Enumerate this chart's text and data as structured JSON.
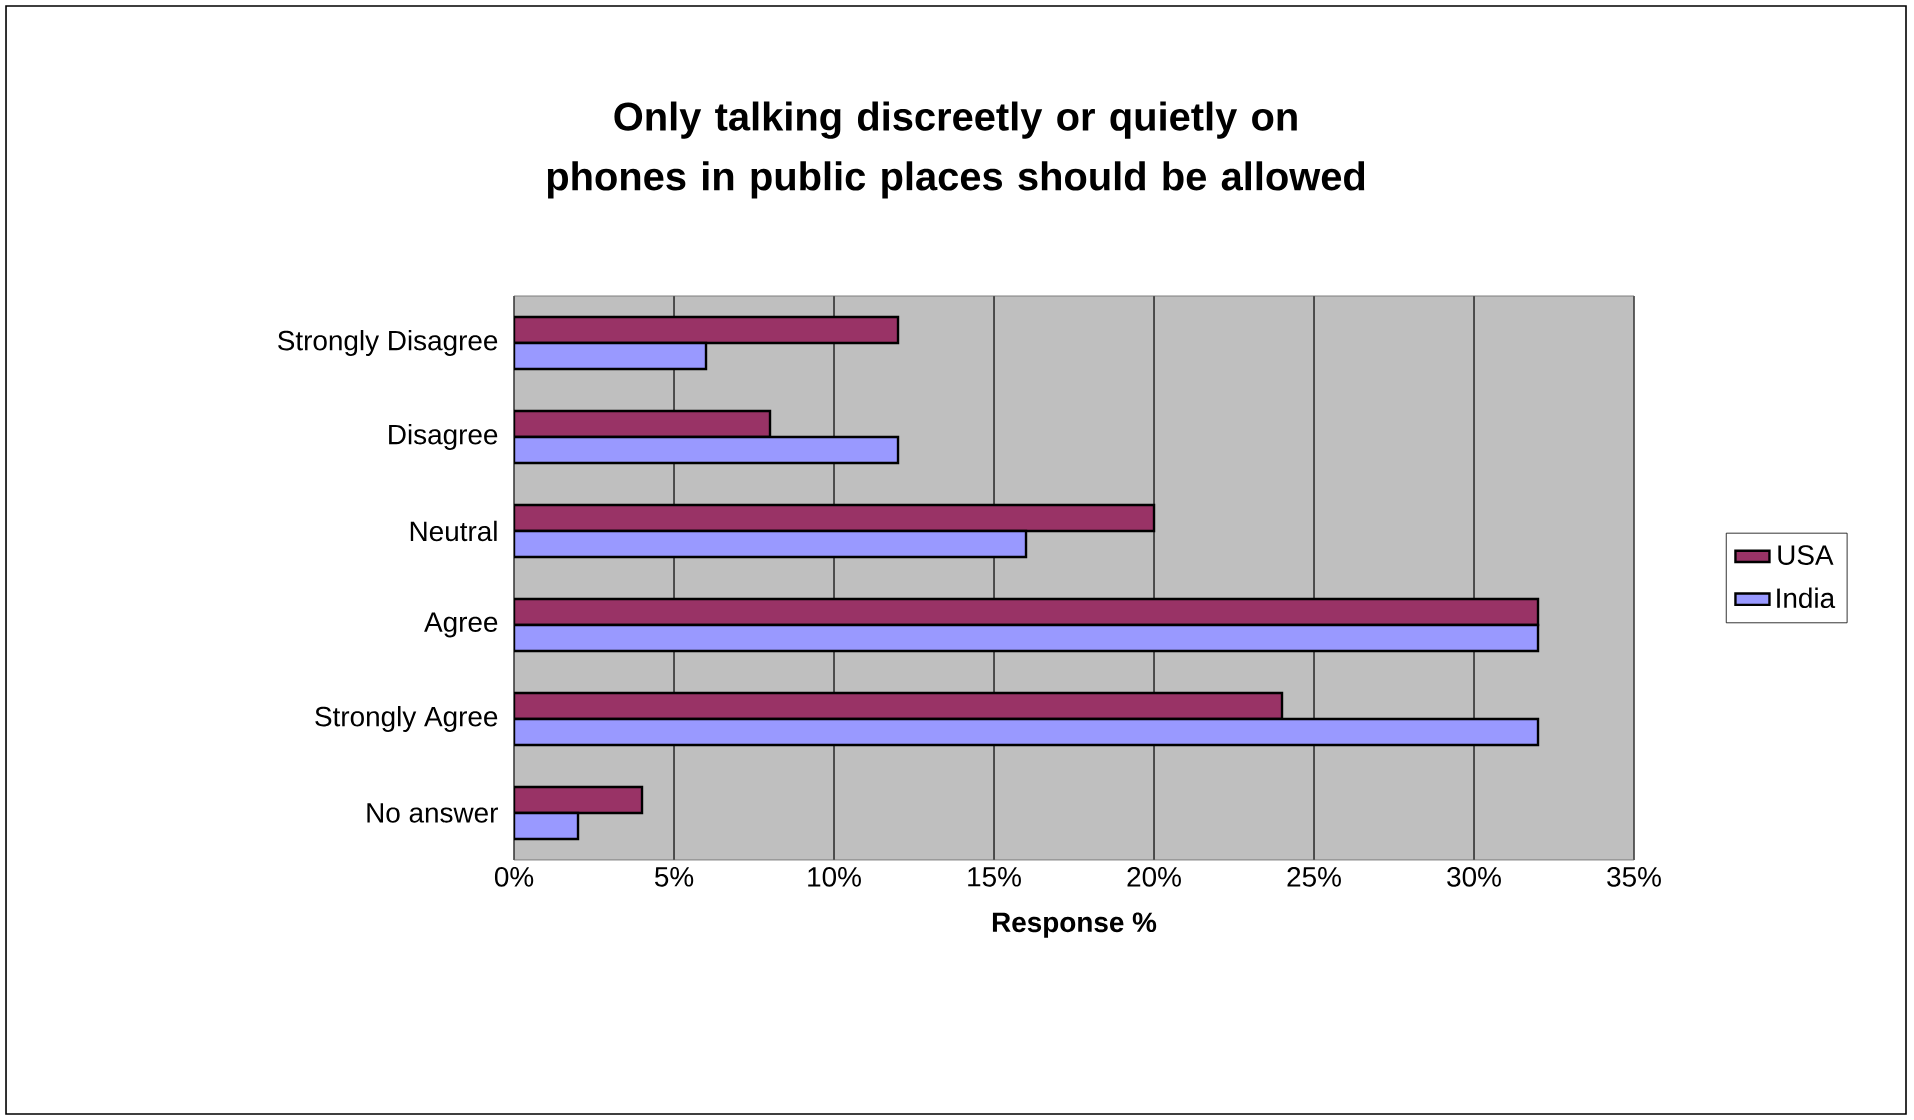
{
  "chart_data": {
    "type": "bar",
    "orientation": "horizontal",
    "title": "Only talking discreetly or quietly on phones in public places should be allowed",
    "xlabel": "Response %",
    "categories": [
      "Strongly Disagree",
      "Disagree",
      "Neutral",
      "Agree",
      "Strongly Agree",
      "No answer"
    ],
    "series": [
      {
        "name": "USA",
        "color": "#993366",
        "values": [
          12,
          8,
          20,
          32,
          24,
          4
        ]
      },
      {
        "name": "India",
        "color": "#9999ff",
        "values": [
          6,
          12,
          16,
          32,
          32,
          2
        ]
      }
    ],
    "xlim": [
      0,
      35
    ],
    "xticks": [
      {
        "value": 0,
        "label": "0%"
      },
      {
        "value": 5,
        "label": "5%"
      },
      {
        "value": 10,
        "label": "10%"
      },
      {
        "value": 15,
        "label": "15%"
      },
      {
        "value": 20,
        "label": "20%"
      },
      {
        "value": 25,
        "label": "25%"
      },
      {
        "value": 30,
        "label": "30%"
      },
      {
        "value": 35,
        "label": "35%"
      }
    ],
    "grid": "x",
    "legend": "right"
  }
}
